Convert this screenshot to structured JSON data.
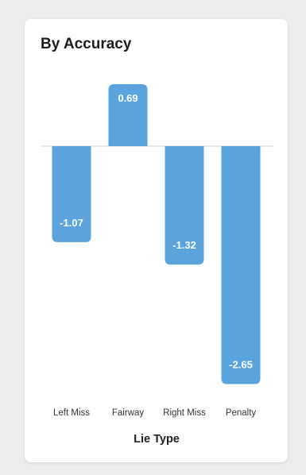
{
  "card": {
    "title": "By Accuracy"
  },
  "colors": {
    "bar": "#5aa3dd",
    "baseline": "#cfcfcf",
    "background": "#ececec"
  },
  "chart_data": {
    "type": "bar",
    "title": "By Accuracy",
    "xlabel": "Lie Type",
    "ylabel": "",
    "categories": [
      "Left Miss",
      "Fairway",
      "Right Miss",
      "Penalty"
    ],
    "values": [
      -1.07,
      0.69,
      -1.32,
      -2.65
    ],
    "value_labels": [
      "-1.07",
      "0.69",
      "-1.32",
      "-2.65"
    ],
    "ylim": [
      -2.8,
      0.9
    ],
    "grid": false,
    "legend": "none"
  }
}
